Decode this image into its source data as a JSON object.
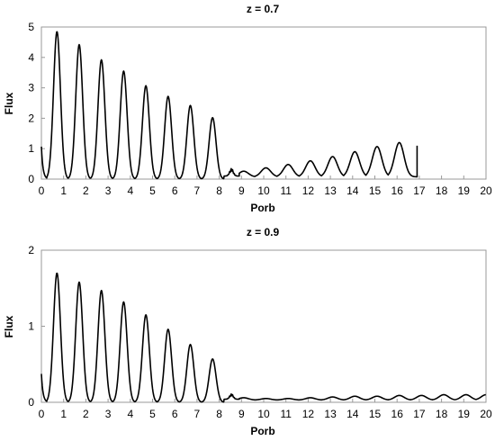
{
  "chart_data": [
    {
      "type": "line",
      "title": "z = 0.7",
      "xlabel": "Porb",
      "ylabel": "Flux",
      "xlim": [
        0,
        20
      ],
      "ylim": [
        0,
        5
      ],
      "xticks": [
        "0",
        "1",
        "2",
        "3",
        "4",
        "5",
        "6",
        "7",
        "8",
        "9",
        "10",
        "11",
        "12",
        "13",
        "14",
        "15",
        "16",
        "17",
        "18",
        "19",
        "20"
      ],
      "yticks": [
        "0",
        "1",
        "2",
        "3",
        "4",
        "5"
      ],
      "grid": false,
      "series": [
        {
          "peaks": [
            {
              "x": 0.7,
              "y": 4.85
            },
            {
              "x": 1.7,
              "y": 4.42
            },
            {
              "x": 2.7,
              "y": 3.92
            },
            {
              "x": 3.7,
              "y": 3.55
            },
            {
              "x": 4.7,
              "y": 3.07
            },
            {
              "x": 5.7,
              "y": 2.72
            },
            {
              "x": 6.7,
              "y": 2.42
            },
            {
              "x": 7.7,
              "y": 2.02
            }
          ],
          "tail_peaks": [
            {
              "x": 9.1,
              "y": 0.26
            },
            {
              "x": 10.1,
              "y": 0.37
            },
            {
              "x": 11.1,
              "y": 0.48
            },
            {
              "x": 12.1,
              "y": 0.6
            },
            {
              "x": 13.1,
              "y": 0.74
            },
            {
              "x": 14.1,
              "y": 0.9
            },
            {
              "x": 15.1,
              "y": 1.07
            },
            {
              "x": 16.1,
              "y": 1.2
            }
          ],
          "x_end": 16.9,
          "y_end": 1.1
        }
      ]
    },
    {
      "type": "line",
      "title": "z = 0.9",
      "xlabel": "Porb",
      "ylabel": "Flux",
      "xlim": [
        0,
        20
      ],
      "ylim": [
        0,
        2
      ],
      "xticks": [
        "0",
        "1",
        "2",
        "3",
        "4",
        "5",
        "6",
        "7",
        "8",
        "9",
        "10",
        "11",
        "12",
        "13",
        "14",
        "15",
        "16",
        "17",
        "18",
        "19",
        "20"
      ],
      "yticks": [
        "0",
        "1",
        "2"
      ],
      "grid": false,
      "series": [
        {
          "peaks": [
            {
              "x": 0.7,
              "y": 1.7
            },
            {
              "x": 1.7,
              "y": 1.58
            },
            {
              "x": 2.7,
              "y": 1.47
            },
            {
              "x": 3.7,
              "y": 1.32
            },
            {
              "x": 4.7,
              "y": 1.15
            },
            {
              "x": 5.7,
              "y": 0.96
            },
            {
              "x": 6.7,
              "y": 0.76
            },
            {
              "x": 7.7,
              "y": 0.57
            }
          ],
          "tail_peaks": [
            {
              "x": 9.1,
              "y": 0.06
            },
            {
              "x": 10.1,
              "y": 0.05
            },
            {
              "x": 11.1,
              "y": 0.05
            },
            {
              "x": 12.1,
              "y": 0.06
            },
            {
              "x": 13.1,
              "y": 0.07
            },
            {
              "x": 14.1,
              "y": 0.08
            },
            {
              "x": 15.1,
              "y": 0.08
            },
            {
              "x": 16.1,
              "y": 0.09
            },
            {
              "x": 17.1,
              "y": 0.09
            },
            {
              "x": 18.1,
              "y": 0.1
            },
            {
              "x": 19.1,
              "y": 0.1
            },
            {
              "x": 20.0,
              "y": 0.1
            }
          ],
          "x_end": 20,
          "y_end": 0.1
        }
      ]
    }
  ]
}
